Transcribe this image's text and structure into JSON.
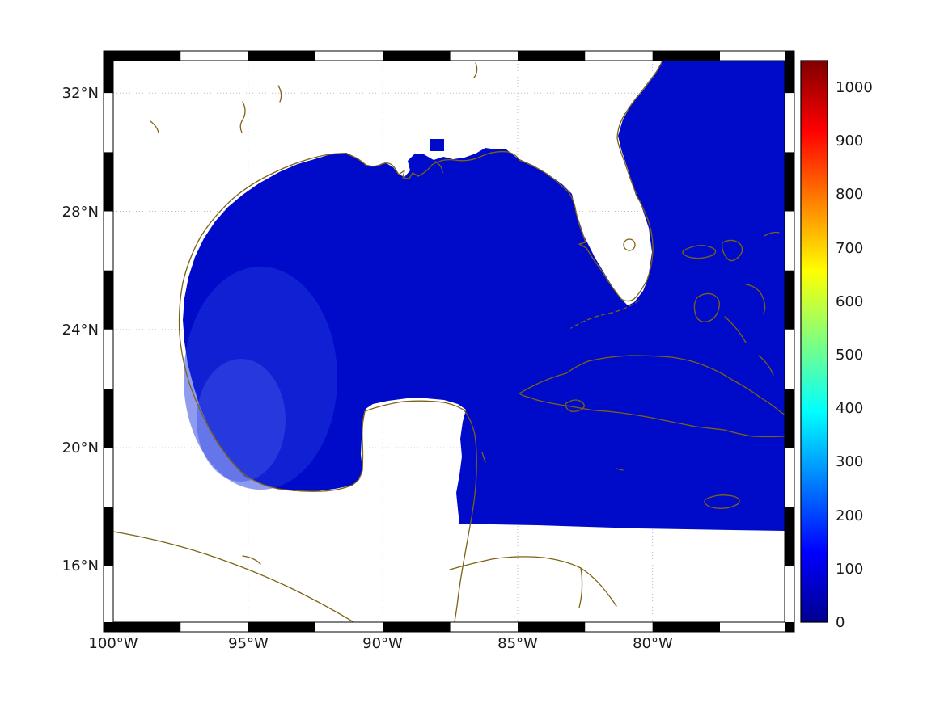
{
  "chart_data": {
    "type": "heatmap",
    "title": "",
    "description": "Geographic gridded-data map of the Gulf of Mexico and western Atlantic; all water/data cells are at the low end of the color scale (dark blue, near 0), land and out-of-domain areas are white, coastlines drawn in brown, MATLAB m_map style black/white checked frame",
    "axes": {
      "lon_west": 100,
      "lon_east": 75.1,
      "lat_south": 14.1,
      "lat_north": 33.1,
      "frame_step_lon_deg": 2.5,
      "frame_step_lat_deg": 2,
      "lon_ticks": [
        {
          "deg": 100,
          "label": "100°W"
        },
        {
          "deg": 95,
          "label": "95°W"
        },
        {
          "deg": 90,
          "label": "90°W"
        },
        {
          "deg": 85,
          "label": "85°W"
        },
        {
          "deg": 80,
          "label": "80°W"
        }
      ],
      "lat_ticks": [
        {
          "deg": 32,
          "label": "32°N"
        },
        {
          "deg": 28,
          "label": "28°N"
        },
        {
          "deg": 24,
          "label": "24°N"
        },
        {
          "deg": 20,
          "label": "20°N"
        },
        {
          "deg": 16,
          "label": "16°N"
        }
      ],
      "grid": "dotted"
    },
    "colorbar": {
      "min": 0,
      "max": 1050,
      "colormap": "jet",
      "position": "right",
      "ticks": [
        {
          "value": 1000,
          "label": "1000"
        },
        {
          "value": 900,
          "label": "900"
        },
        {
          "value": 800,
          "label": "800"
        },
        {
          "value": 700,
          "label": "700"
        },
        {
          "value": 600,
          "label": "600"
        },
        {
          "value": 500,
          "label": "500"
        },
        {
          "value": 400,
          "label": "400"
        },
        {
          "value": 300,
          "label": "300"
        },
        {
          "value": 200,
          "label": "200"
        },
        {
          "value": 100,
          "label": "100"
        },
        {
          "value": 0,
          "label": "0"
        }
      ],
      "stops": [
        {
          "pos": 0.0,
          "color": "#00008f"
        },
        {
          "pos": 0.125,
          "color": "#0000ff"
        },
        {
          "pos": 0.375,
          "color": "#00ffff"
        },
        {
          "pos": 0.625,
          "color": "#ffff00"
        },
        {
          "pos": 0.875,
          "color": "#ff0000"
        },
        {
          "pos": 1.0,
          "color": "#800000"
        }
      ]
    },
    "field_summary": {
      "dominant_value_range": [
        0,
        150
      ],
      "appearance": "uniform dark blue over all ocean cells, slightly lighter blue shading in the western Gulf"
    },
    "colors": {
      "ocean": "#000bca",
      "ocean_shallow_shade": "#2038dd",
      "ocean_shallow_shade2": "#3a52e6",
      "coastline": "#7e6212",
      "grid": "#bbbbbb",
      "frame": "#000000",
      "background": "#ffffff",
      "label_text": "#1a1a1a"
    }
  }
}
